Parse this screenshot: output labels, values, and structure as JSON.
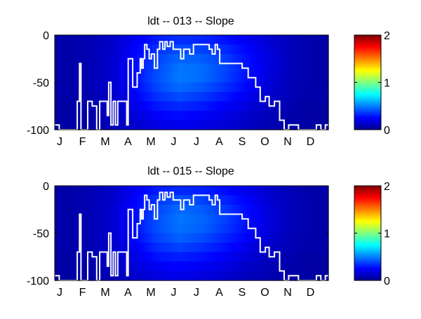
{
  "chart_data": [
    {
      "type": "heatmap",
      "title": "ldt -- 013 -- Slope",
      "xlabel": "",
      "ylabel": "",
      "x_tick_labels": [
        "J",
        "F",
        "M",
        "A",
        "M",
        "J",
        "J",
        "A",
        "S",
        "O",
        "N",
        "D"
      ],
      "x_range_days": [
        0,
        365
      ],
      "ylim": [
        -100,
        0
      ],
      "y_tick_labels": [
        "0",
        "-50",
        "-100"
      ],
      "y_ticks": [
        0,
        -50,
        -100
      ],
      "colormap": "jet",
      "clim": [
        0,
        2
      ],
      "colorbar_tick_labels": [
        "2",
        "1",
        "0"
      ],
      "colorbar_ticks": [
        2,
        1,
        0
      ],
      "heatmap_day_centers": [
        15,
        45,
        74,
        105,
        135,
        166,
        196,
        227,
        258,
        288,
        319,
        349
      ],
      "heatmap_depth_centers": [
        -5,
        -15,
        -25,
        -35,
        -45,
        -55,
        -65,
        -75,
        -85,
        -95
      ],
      "heatmap_values": [
        [
          0.08,
          0.1,
          0.14,
          0.22,
          0.3,
          0.34,
          0.32,
          0.28,
          0.22,
          0.16,
          0.11,
          0.08
        ],
        [
          0.08,
          0.1,
          0.14,
          0.24,
          0.34,
          0.4,
          0.38,
          0.33,
          0.25,
          0.17,
          0.11,
          0.08
        ],
        [
          0.08,
          0.1,
          0.15,
          0.25,
          0.37,
          0.45,
          0.43,
          0.37,
          0.27,
          0.18,
          0.11,
          0.08
        ],
        [
          0.08,
          0.1,
          0.15,
          0.26,
          0.39,
          0.48,
          0.46,
          0.39,
          0.28,
          0.18,
          0.11,
          0.08
        ],
        [
          0.08,
          0.1,
          0.15,
          0.26,
          0.4,
          0.49,
          0.46,
          0.38,
          0.27,
          0.17,
          0.11,
          0.08
        ],
        [
          0.08,
          0.1,
          0.15,
          0.25,
          0.38,
          0.46,
          0.42,
          0.34,
          0.25,
          0.16,
          0.1,
          0.08
        ],
        [
          0.08,
          0.09,
          0.14,
          0.23,
          0.34,
          0.4,
          0.36,
          0.29,
          0.21,
          0.15,
          0.1,
          0.08
        ],
        [
          0.07,
          0.09,
          0.13,
          0.2,
          0.29,
          0.33,
          0.3,
          0.24,
          0.18,
          0.13,
          0.09,
          0.07
        ],
        [
          0.07,
          0.08,
          0.12,
          0.17,
          0.24,
          0.27,
          0.24,
          0.2,
          0.15,
          0.11,
          0.08,
          0.07
        ],
        [
          0.07,
          0.08,
          0.11,
          0.15,
          0.2,
          0.22,
          0.2,
          0.17,
          0.13,
          0.1,
          0.08,
          0.07
        ]
      ],
      "line_color": "#ffffff",
      "line_day": [
        0,
        6,
        6,
        30,
        30,
        33,
        33,
        35,
        35,
        40,
        40,
        44,
        44,
        50,
        50,
        56,
        56,
        60,
        60,
        70,
        70,
        72,
        72,
        75,
        75,
        78,
        78,
        81,
        81,
        84,
        84,
        96,
        96,
        98,
        98,
        104,
        104,
        110,
        110,
        114,
        114,
        116,
        116,
        118,
        118,
        120,
        120,
        123,
        123,
        126,
        126,
        129,
        129,
        133,
        133,
        137,
        137,
        140,
        140,
        144,
        144,
        147,
        147,
        150,
        150,
        154,
        154,
        158,
        158,
        168,
        168,
        172,
        172,
        180,
        180,
        185,
        185,
        200,
        200,
        206,
        206,
        210,
        210,
        214,
        214,
        217,
        217,
        220,
        220,
        250,
        250,
        258,
        258,
        268,
        268,
        274,
        274,
        281,
        281,
        286,
        286,
        293,
        293,
        300,
        300,
        306,
        306,
        312,
        312,
        325,
        325,
        349,
        349,
        355,
        355,
        361,
        361,
        365
      ],
      "line_depth": [
        -95,
        -95,
        -100,
        -100,
        -70,
        -70,
        -30,
        -30,
        -100,
        -100,
        -100,
        -100,
        -70,
        -70,
        -75,
        -75,
        -100,
        -100,
        -70,
        -70,
        -85,
        -85,
        -50,
        -50,
        -95,
        -95,
        -70,
        -70,
        -95,
        -95,
        -70,
        -70,
        -95,
        -95,
        -25,
        -25,
        -55,
        -55,
        -40,
        -40,
        -25,
        -25,
        -35,
        -35,
        -25,
        -25,
        -10,
        -10,
        -15,
        -15,
        -25,
        -25,
        -20,
        -20,
        -35,
        -35,
        -15,
        -15,
        -7,
        -7,
        -15,
        -15,
        -7,
        -7,
        -12,
        -12,
        -7,
        -7,
        -15,
        -15,
        -25,
        -25,
        -15,
        -15,
        -20,
        -20,
        -10,
        -10,
        -10,
        -10,
        -15,
        -15,
        -20,
        -20,
        -10,
        -10,
        -15,
        -15,
        -30,
        -30,
        -35,
        -35,
        -45,
        -45,
        -55,
        -55,
        -70,
        -70,
        -65,
        -65,
        -75,
        -75,
        -70,
        -70,
        -90,
        -90,
        -100,
        -100,
        -95,
        -95,
        -100,
        -100,
        -95,
        -95,
        -100,
        -100,
        -95,
        -95,
        -70
      ]
    },
    {
      "type": "heatmap",
      "title": "ldt -- 015 -- Slope",
      "xlabel": "",
      "ylabel": "",
      "x_tick_labels": [
        "J",
        "F",
        "M",
        "A",
        "M",
        "J",
        "J",
        "A",
        "S",
        "O",
        "N",
        "D"
      ],
      "x_range_days": [
        0,
        365
      ],
      "ylim": [
        -100,
        0
      ],
      "y_tick_labels": [
        "0",
        "-50",
        "-100"
      ],
      "y_ticks": [
        0,
        -50,
        -100
      ],
      "colormap": "jet",
      "clim": [
        0,
        2
      ],
      "colorbar_tick_labels": [
        "2",
        "1",
        "0"
      ],
      "colorbar_ticks": [
        2,
        1,
        0
      ],
      "heatmap_day_centers": [
        15,
        45,
        74,
        105,
        135,
        166,
        196,
        227,
        258,
        288,
        319,
        349
      ],
      "heatmap_depth_centers": [
        -5,
        -15,
        -25,
        -35,
        -45,
        -55,
        -65,
        -75,
        -85,
        -95
      ],
      "heatmap_values": [
        [
          0.08,
          0.1,
          0.14,
          0.22,
          0.3,
          0.33,
          0.31,
          0.27,
          0.21,
          0.15,
          0.1,
          0.08
        ],
        [
          0.08,
          0.1,
          0.14,
          0.24,
          0.35,
          0.41,
          0.38,
          0.32,
          0.24,
          0.16,
          0.11,
          0.08
        ],
        [
          0.08,
          0.1,
          0.15,
          0.25,
          0.38,
          0.46,
          0.43,
          0.36,
          0.26,
          0.17,
          0.11,
          0.08
        ],
        [
          0.08,
          0.1,
          0.15,
          0.26,
          0.4,
          0.48,
          0.45,
          0.38,
          0.27,
          0.17,
          0.11,
          0.08
        ],
        [
          0.08,
          0.1,
          0.15,
          0.26,
          0.4,
          0.47,
          0.44,
          0.36,
          0.26,
          0.17,
          0.11,
          0.08
        ],
        [
          0.08,
          0.1,
          0.15,
          0.25,
          0.37,
          0.44,
          0.4,
          0.32,
          0.24,
          0.16,
          0.1,
          0.08
        ],
        [
          0.08,
          0.09,
          0.14,
          0.22,
          0.33,
          0.38,
          0.34,
          0.28,
          0.2,
          0.14,
          0.1,
          0.08
        ],
        [
          0.07,
          0.09,
          0.13,
          0.19,
          0.28,
          0.31,
          0.28,
          0.23,
          0.17,
          0.12,
          0.09,
          0.07
        ],
        [
          0.07,
          0.08,
          0.12,
          0.17,
          0.23,
          0.25,
          0.23,
          0.19,
          0.14,
          0.11,
          0.08,
          0.07
        ],
        [
          0.07,
          0.08,
          0.11,
          0.15,
          0.19,
          0.21,
          0.19,
          0.16,
          0.12,
          0.1,
          0.08,
          0.07
        ]
      ],
      "line_color": "#ffffff",
      "line_day": [
        0,
        6,
        6,
        30,
        30,
        33,
        33,
        35,
        35,
        40,
        40,
        44,
        44,
        50,
        50,
        56,
        56,
        60,
        60,
        70,
        70,
        72,
        72,
        75,
        75,
        78,
        78,
        81,
        81,
        84,
        84,
        96,
        96,
        98,
        98,
        104,
        104,
        110,
        110,
        114,
        114,
        116,
        116,
        118,
        118,
        120,
        120,
        123,
        123,
        126,
        126,
        129,
        129,
        133,
        133,
        137,
        137,
        140,
        140,
        144,
        144,
        147,
        147,
        150,
        150,
        154,
        154,
        158,
        158,
        168,
        168,
        172,
        172,
        180,
        180,
        185,
        185,
        200,
        200,
        206,
        206,
        210,
        210,
        214,
        214,
        217,
        217,
        220,
        220,
        250,
        250,
        258,
        258,
        268,
        268,
        274,
        274,
        281,
        281,
        286,
        286,
        293,
        293,
        300,
        300,
        306,
        306,
        312,
        312,
        325,
        325,
        349,
        349,
        355,
        355,
        361,
        361,
        365
      ],
      "line_depth": [
        -95,
        -95,
        -100,
        -100,
        -70,
        -70,
        -30,
        -30,
        -100,
        -100,
        -100,
        -100,
        -70,
        -70,
        -75,
        -75,
        -100,
        -100,
        -70,
        -70,
        -85,
        -85,
        -50,
        -50,
        -95,
        -95,
        -70,
        -70,
        -95,
        -95,
        -70,
        -70,
        -95,
        -95,
        -25,
        -25,
        -55,
        -55,
        -40,
        -40,
        -25,
        -25,
        -35,
        -35,
        -25,
        -25,
        -10,
        -10,
        -15,
        -15,
        -25,
        -25,
        -20,
        -20,
        -35,
        -35,
        -15,
        -15,
        -7,
        -7,
        -15,
        -15,
        -7,
        -7,
        -12,
        -12,
        -7,
        -7,
        -15,
        -15,
        -25,
        -25,
        -15,
        -15,
        -20,
        -20,
        -10,
        -10,
        -10,
        -10,
        -15,
        -15,
        -20,
        -20,
        -10,
        -10,
        -15,
        -15,
        -30,
        -30,
        -35,
        -35,
        -45,
        -45,
        -55,
        -55,
        -70,
        -70,
        -65,
        -65,
        -75,
        -75,
        -70,
        -70,
        -90,
        -90,
        -100,
        -100,
        -95,
        -95,
        -100,
        -100,
        -95,
        -95,
        -100,
        -100,
        -95,
        -95,
        -70
      ]
    }
  ]
}
